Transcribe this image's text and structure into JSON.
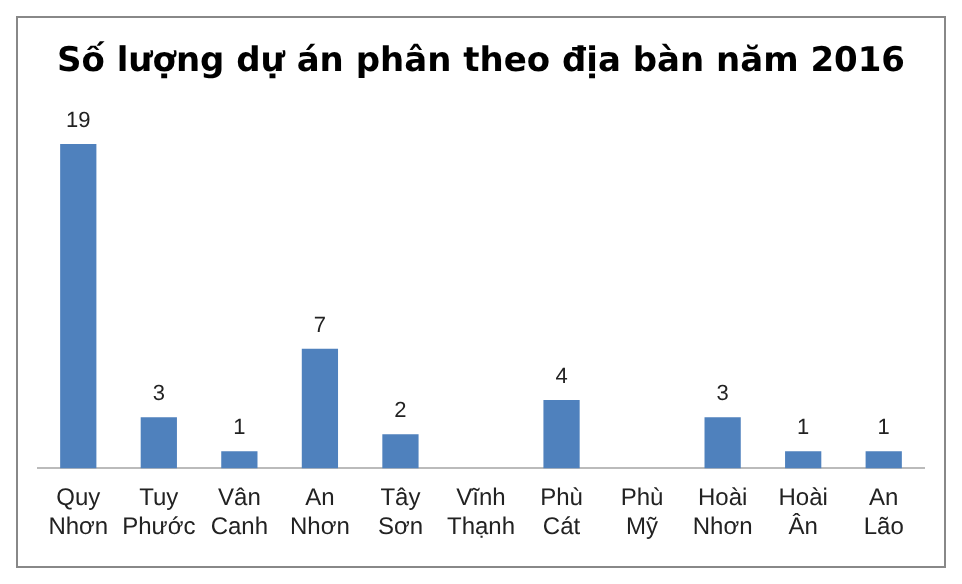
{
  "chart_data": {
    "type": "bar",
    "title": "Số lượng dự án phân theo địa bàn năm 2016",
    "categories": [
      "Quy Nhơn",
      "Tuy Phước",
      "Vân Canh",
      "An Nhơn",
      "Tây Sơn",
      "Vĩnh Thạnh",
      "Phù Cát",
      "Phù Mỹ",
      "Hoài Nhơn",
      "Hoài Ân",
      "An Lão"
    ],
    "values": [
      19,
      3,
      1,
      7,
      2,
      0,
      4,
      0,
      3,
      1,
      1
    ],
    "value_labels": [
      "19",
      "3",
      "1",
      "7",
      "2",
      null,
      "4",
      null,
      "3",
      "1",
      "1"
    ],
    "color": "#4f81bd",
    "tick_labels": "x",
    "grid": false,
    "legend": false
  }
}
